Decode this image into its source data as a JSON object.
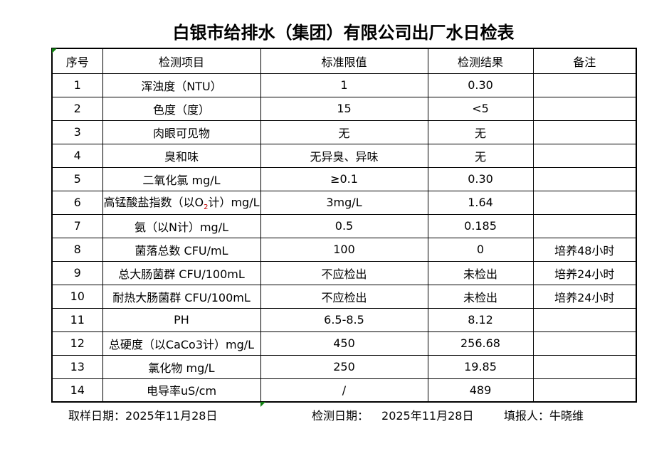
{
  "page": {
    "title": "白银市给排水（集团）有限公司出厂水日检表"
  },
  "table": {
    "headers": [
      "序号",
      "检测项目",
      "标准限值",
      "检测结果",
      "备注"
    ],
    "rows": [
      {
        "no": "1",
        "item": "浑浊度（NTU）",
        "limit": "1",
        "result": "0.30",
        "note": ""
      },
      {
        "no": "2",
        "item": "色度（度）",
        "limit": "15",
        "result": "<5",
        "note": ""
      },
      {
        "no": "3",
        "item": "肉眼可见物",
        "limit": "无",
        "result": "无",
        "note": ""
      },
      {
        "no": "4",
        "item": "臭和味",
        "limit": "无异臭、异味",
        "result": "无",
        "note": ""
      },
      {
        "no": "5",
        "item": "二氧化氯 mg/L",
        "limit": "≥0.1",
        "result": "0.30",
        "note": ""
      },
      {
        "no": "6",
        "item_segments": [
          {
            "text": "高锰酸盐指数（以O"
          },
          {
            "text": "2",
            "subscript": true,
            "color": "#c00000"
          },
          {
            "text": "计）mg/L"
          }
        ],
        "limit": "3mg/L",
        "result": "1.64",
        "note": ""
      },
      {
        "no": "7",
        "item": "氨（以N计）mg/L",
        "limit": "0.5",
        "result": "0.185",
        "note": ""
      },
      {
        "no": "8",
        "item": "菌落总数 CFU/mL",
        "limit": "100",
        "result": "0",
        "note": "培养48小时"
      },
      {
        "no": "9",
        "item": "总大肠菌群 CFU/100mL",
        "limit": "不应检出",
        "result": "未检出",
        "note": "培养24小时"
      },
      {
        "no": "10",
        "item": "耐热大肠菌群 CFU/100mL",
        "limit": "不应检出",
        "result": "未检出",
        "note": "培养24小时"
      },
      {
        "no": "11",
        "item": "PH",
        "limit": "6.5-8.5",
        "result": "8.12",
        "note": ""
      },
      {
        "no": "12",
        "item": "总硬度（以CaCo3计）mg/L",
        "limit": "450",
        "result": "256.68",
        "note": ""
      },
      {
        "no": "13",
        "item": "氯化物 mg/L",
        "limit": "250",
        "result": "19.85",
        "note": ""
      },
      {
        "no": "14",
        "item": "电导率uS/cm",
        "limit": "/",
        "result": "489",
        "note": ""
      }
    ]
  },
  "footer": {
    "sample_date_label": "取样日期：",
    "sample_date": "2025年11月28日",
    "test_date_label": "检测日期：",
    "test_date": "2025年11月28日",
    "reporter_label": "填报人：",
    "reporter_name": "牛晓维"
  },
  "icons": {
    "excel_error_indicator": "green-triangle"
  },
  "colors": {
    "text": "#000000",
    "border": "#000000",
    "background": "#ffffff",
    "excel_triangle_green": "#108010",
    "subscript_red": "#c00000"
  }
}
